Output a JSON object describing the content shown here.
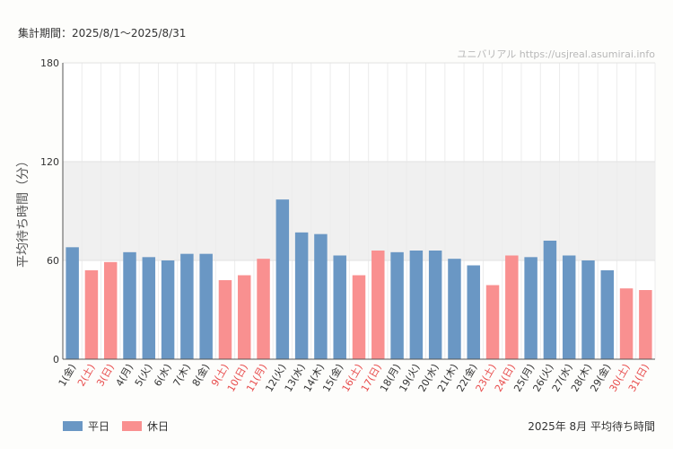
{
  "header": {
    "period_label": "集計期間：2025/8/1〜2025/8/31",
    "watermark": "ユニバリアル  https://usjreal.asumirai.info"
  },
  "colors": {
    "weekday": "#6a97c4",
    "holiday": "#f99090",
    "holiday_text": "#e84c4c",
    "band": "#f0f0f0"
  },
  "chart_data": {
    "type": "bar",
    "title": "2025年 8月 平均待ち時間",
    "ylabel": "平均待ち時間（分）",
    "xlabel": "",
    "ylim": [
      0,
      180
    ],
    "yticks": [
      0,
      60,
      120,
      180
    ],
    "shaded_band": [
      60,
      120
    ],
    "grid": true,
    "legend_position": "bottom-left",
    "legend": [
      {
        "key": "weekday",
        "label": "平日"
      },
      {
        "key": "holiday",
        "label": "休日"
      }
    ],
    "categories": [
      "1(金)",
      "2(土)",
      "3(日)",
      "4(月)",
      "5(火)",
      "6(水)",
      "7(木)",
      "8(金)",
      "9(土)",
      "10(日)",
      "11(月)",
      "12(火)",
      "13(水)",
      "14(木)",
      "15(金)",
      "16(土)",
      "17(日)",
      "18(月)",
      "19(火)",
      "20(水)",
      "21(木)",
      "22(金)",
      "23(土)",
      "24(日)",
      "25(月)",
      "26(火)",
      "27(水)",
      "28(木)",
      "29(金)",
      "30(土)",
      "31(日)"
    ],
    "values": [
      68,
      54,
      59,
      65,
      62,
      60,
      64,
      64,
      48,
      51,
      61,
      97,
      77,
      76,
      63,
      51,
      66,
      65,
      66,
      66,
      61,
      57,
      45,
      63,
      62,
      72,
      63,
      60,
      54,
      43,
      42
    ],
    "day_types": [
      "weekday",
      "holiday",
      "holiday",
      "weekday",
      "weekday",
      "weekday",
      "weekday",
      "weekday",
      "holiday",
      "holiday",
      "holiday",
      "weekday",
      "weekday",
      "weekday",
      "weekday",
      "holiday",
      "holiday",
      "weekday",
      "weekday",
      "weekday",
      "weekday",
      "weekday",
      "holiday",
      "holiday",
      "weekday",
      "weekday",
      "weekday",
      "weekday",
      "weekday",
      "holiday",
      "holiday"
    ]
  }
}
